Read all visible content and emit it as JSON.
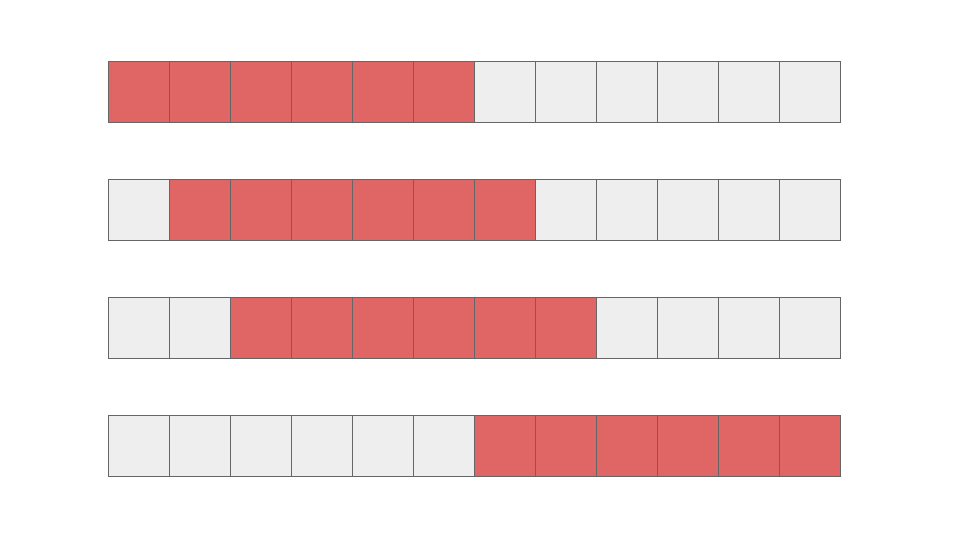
{
  "colors": {
    "filled": "#e06666",
    "empty": "#eeeeee",
    "border": "#666666"
  },
  "rows": [
    {
      "cells": [
        1,
        1,
        1,
        1,
        1,
        1,
        0,
        0,
        0,
        0,
        0,
        0
      ]
    },
    {
      "cells": [
        0,
        1,
        1,
        1,
        1,
        1,
        1,
        0,
        0,
        0,
        0,
        0
      ]
    },
    {
      "cells": [
        0,
        0,
        1,
        1,
        1,
        1,
        1,
        1,
        0,
        0,
        0,
        0
      ]
    },
    {
      "cells": [
        0,
        0,
        0,
        0,
        0,
        0,
        1,
        1,
        1,
        1,
        1,
        1
      ]
    }
  ]
}
